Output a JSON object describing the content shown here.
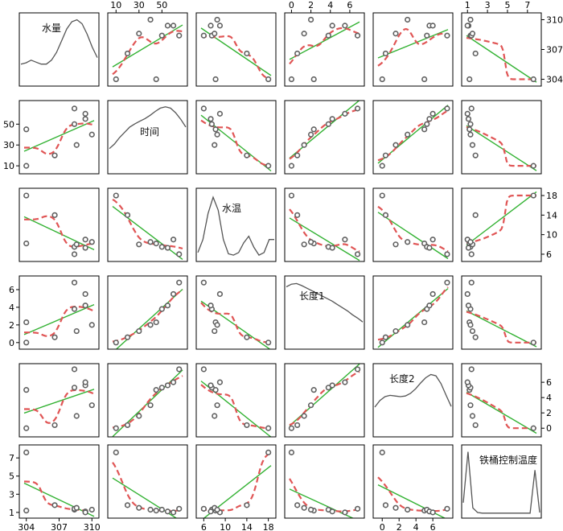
{
  "chart_data": {
    "type": "scatter-matrix",
    "variables": [
      "水量",
      "时间",
      "水温",
      "长度1",
      "长度2",
      "铁桶控制温度"
    ],
    "top_ticks": {
      "1": [
        "10",
        "30",
        "50"
      ],
      "3": [
        "0",
        "2",
        "4",
        "6"
      ],
      "5": [
        "1",
        "3",
        "5",
        "7"
      ]
    },
    "bottom_ticks": {
      "0": [
        "304",
        "307",
        "310"
      ],
      "2": [
        "6",
        "10",
        "14",
        "18"
      ],
      "4": [
        "0",
        "2",
        "4",
        "6"
      ]
    },
    "left_ticks": {
      "1": [
        "10",
        "30",
        "50"
      ],
      "3": [
        "0",
        "2",
        "4",
        "6"
      ],
      "5": [
        "1",
        "3",
        "5",
        "7"
      ]
    },
    "right_ticks": {
      "0": [
        "304",
        "307",
        "310"
      ],
      "2": [
        "6",
        "10",
        "14",
        "18"
      ],
      "4": [
        "0",
        "2",
        "4",
        "6"
      ]
    },
    "ranges": [
      [
        303.8,
        310.2
      ],
      [
        7,
        68
      ],
      [
        5.5,
        18.5
      ],
      [
        -0.2,
        7.0
      ],
      [
        -0.5,
        7.8
      ],
      [
        0.9,
        7.9
      ]
    ],
    "observations": [
      {
        "水量": 304,
        "时间": 10,
        "水温": 18,
        "长度1": 0.0,
        "长度2": 0.0,
        "铁桶控制温度": 7.6
      },
      {
        "水量": 304,
        "时间": 45,
        "水温": 8.2,
        "长度1": 2.3,
        "长度2": 5.0,
        "铁桶控制温度": 1.2
      },
      {
        "水量": 306.6,
        "时间": 20,
        "水温": 14,
        "长度1": 0.6,
        "长度2": 0.4,
        "铁桶控制温度": 1.8
      },
      {
        "水量": 308.4,
        "时间": 50,
        "水温": 7.5,
        "长度1": 3.8,
        "长度2": 5.3,
        "铁桶控制温度": 1.3
      },
      {
        "水量": 308.4,
        "时间": 65,
        "水温": 6.0,
        "长度1": 6.8,
        "长度2": 7.7,
        "铁桶控制温度": 1.4
      },
      {
        "水量": 308.6,
        "时间": 30,
        "水温": 8.0,
        "长度1": 1.3,
        "长度2": 1.6,
        "铁桶控制温度": 1.5
      },
      {
        "水量": 309.4,
        "时间": 55,
        "水温": 7.3,
        "长度1": 4.2,
        "长度2": 5.6,
        "铁桶控制温度": 1.1
      },
      {
        "水量": 309.4,
        "时间": 60,
        "水温": 9.0,
        "长度1": 5.5,
        "长度2": 6.0,
        "铁桶控制温度": 1.0
      },
      {
        "水量": 310,
        "时间": 40,
        "水温": 8.5,
        "长度1": 2.0,
        "长度2": 3.0,
        "铁桶控制温度": 1.3
      }
    ],
    "density_curves": {
      "水量": [
        0.3,
        0.32,
        0.36,
        0.33,
        0.3,
        0.3,
        0.36,
        0.48,
        0.66,
        0.84,
        0.95,
        0.98,
        0.92,
        0.76,
        0.56,
        0.4
      ],
      "时间": [
        0.35,
        0.42,
        0.52,
        0.6,
        0.68,
        0.73,
        0.77,
        0.81,
        0.86,
        0.92,
        0.97,
        0.99,
        0.97,
        0.9,
        0.8,
        0.68
      ],
      "水温": [
        0.1,
        0.3,
        0.7,
        0.95,
        0.75,
        0.3,
        0.08,
        0.06,
        0.1,
        0.25,
        0.35,
        0.18,
        0.06,
        0.1,
        0.3,
        0.3
      ],
      "长度1": [
        0.92,
        0.96,
        0.97,
        0.94,
        0.9,
        0.86,
        0.82,
        0.78,
        0.74,
        0.7,
        0.65,
        0.6,
        0.55,
        0.49,
        0.44,
        0.38
      ],
      "长度2": [
        0.42,
        0.52,
        0.58,
        0.6,
        0.59,
        0.58,
        0.59,
        0.63,
        0.7,
        0.79,
        0.87,
        0.92,
        0.9,
        0.78,
        0.6,
        0.43
      ],
      "铁桶控制温度": [
        0.2,
        0.98,
        0.12,
        0.05,
        0.04,
        0.04,
        0.04,
        0.04,
        0.04,
        0.04,
        0.04,
        0.04,
        0.04,
        0.04,
        0.04,
        0.7,
        0.05
      ]
    },
    "style": {
      "point_edge_color": "#606060",
      "point_fill_color": "#ffffff",
      "regression_line_color": "#33b233",
      "smoother_color": "#e05555",
      "density_color": "#555555",
      "panel_border_color": "#000000"
    },
    "grid": false,
    "legend": "none"
  }
}
